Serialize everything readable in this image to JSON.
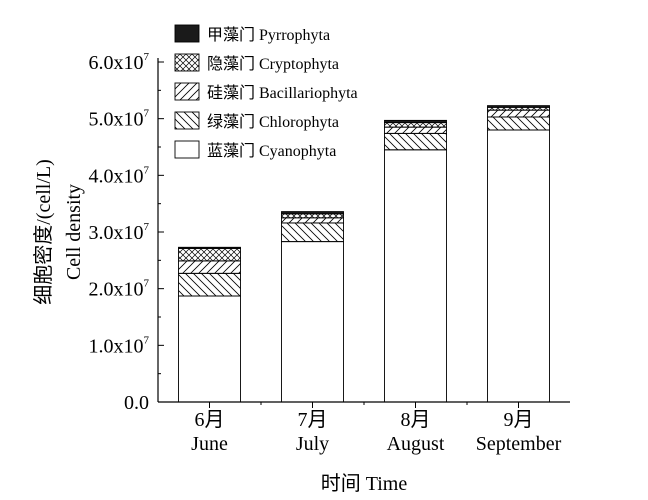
{
  "chart_data": {
    "type": "bar",
    "stacked": true,
    "categories": [
      "6月\nJune",
      "7月\nJuly",
      "8月\nAugust",
      "9月\nSeptember"
    ],
    "category_lines": [
      [
        "6月",
        "June"
      ],
      [
        "7月",
        "July"
      ],
      [
        "8月",
        "August"
      ],
      [
        "9月",
        "September"
      ]
    ],
    "series": [
      {
        "name": "蓝藻门 Cyanophyta",
        "pattern": "none",
        "values": [
          18700000.0,
          28300000.0,
          44500000.0,
          48000000.0
        ]
      },
      {
        "name": "绿藻门 Chlorophyta",
        "pattern": "backslash",
        "values": [
          4000000.0,
          3300000.0,
          2900000.0,
          2300000.0
        ]
      },
      {
        "name": "硅藻门 Bacillariophyta",
        "pattern": "slash",
        "values": [
          2200000.0,
          900000.0,
          1100000.0,
          1200000.0
        ]
      },
      {
        "name": "隐藻门 Cryptophyta",
        "pattern": "cross",
        "values": [
          2200000.0,
          700000.0,
          800000.0,
          500000.0
        ]
      },
      {
        "name": "甲藻门 Pyrrophyta",
        "pattern": "solid",
        "values": [
          200000.0,
          400000.0,
          400000.0,
          300000.0
        ]
      }
    ],
    "legend_order": [
      4,
      3,
      2,
      1,
      0
    ],
    "ylim": [
      0,
      60000000.0
    ],
    "y_ticks": [
      {
        "value": 0,
        "label": "0.0"
      },
      {
        "value": 10000000.0,
        "label": "1.0x10",
        "exp": "7"
      },
      {
        "value": 20000000.0,
        "label": "2.0x10",
        "exp": "7"
      },
      {
        "value": 30000000.0,
        "label": "3.0x10",
        "exp": "7"
      },
      {
        "value": 40000000.0,
        "label": "4.0x10",
        "exp": "7"
      },
      {
        "value": 50000000.0,
        "label": "5.0x10",
        "exp": "7"
      },
      {
        "value": 60000000.0,
        "label": "6.0x10",
        "exp": "7"
      }
    ],
    "ylabel_cn": "细胞密度/(cell/L)",
    "ylabel_en": "Cell density",
    "xlabel": "时间 Time",
    "grid": false,
    "legend_position": "top-left"
  }
}
